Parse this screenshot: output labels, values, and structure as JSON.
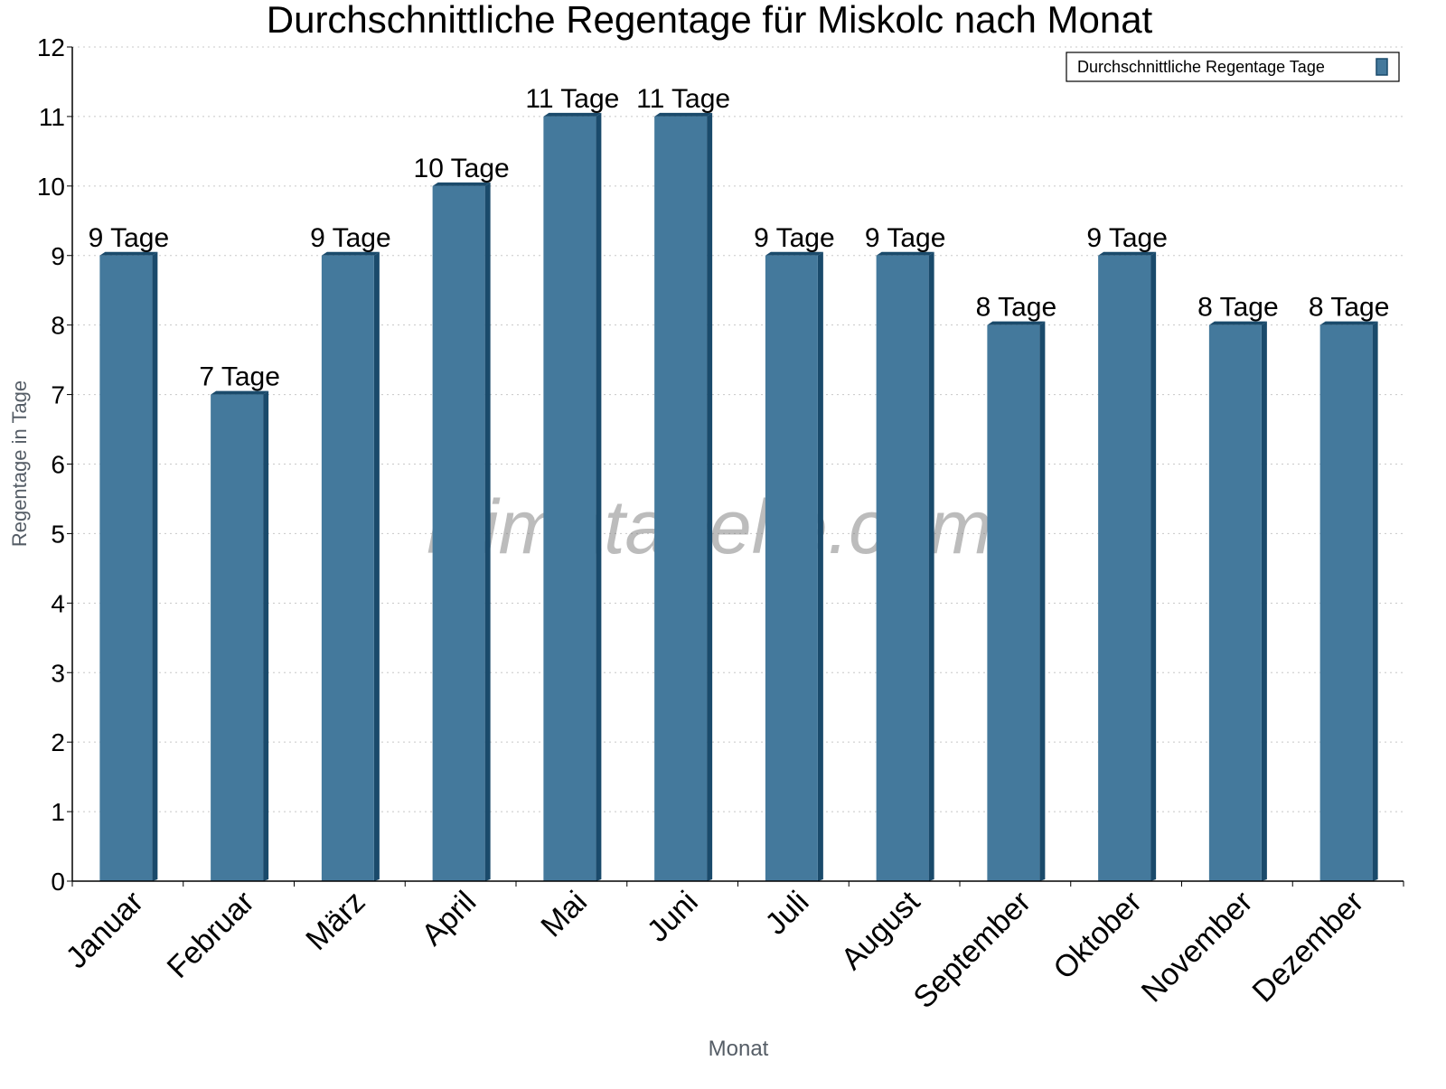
{
  "chart_data": {
    "type": "bar",
    "title": "Durchschnittliche Regentage für Miskolc nach Monat",
    "xlabel": "Monat",
    "ylabel": "Regentage in Tage",
    "ylim": [
      0,
      12
    ],
    "yticks": [
      "0",
      "1",
      "2",
      "3",
      "4",
      "5",
      "6",
      "7",
      "8",
      "9",
      "10",
      "11",
      "12"
    ],
    "grid": true,
    "legend_position": "top-right",
    "categories": [
      "Januar",
      "Februar",
      "März",
      "April",
      "Mai",
      "Juni",
      "Juli",
      "August",
      "September",
      "Oktober",
      "November",
      "Dezember"
    ],
    "series": [
      {
        "name": "Durchschnittliche Regentage Tage",
        "values": [
          9,
          7,
          9,
          10,
          11,
          11,
          9,
          9,
          8,
          9,
          8,
          8
        ]
      }
    ],
    "data_labels": [
      "9 Tage",
      "7 Tage",
      "9 Tage",
      "10 Tage",
      "11 Tage",
      "11 Tage",
      "9 Tage",
      "9 Tage",
      "8 Tage",
      "9 Tage",
      "8 Tage",
      "8 Tage"
    ],
    "colors": {
      "bar_front": "#44799c",
      "bar_side": "#1a4a6b"
    }
  },
  "watermark": "klimatabelle.com"
}
